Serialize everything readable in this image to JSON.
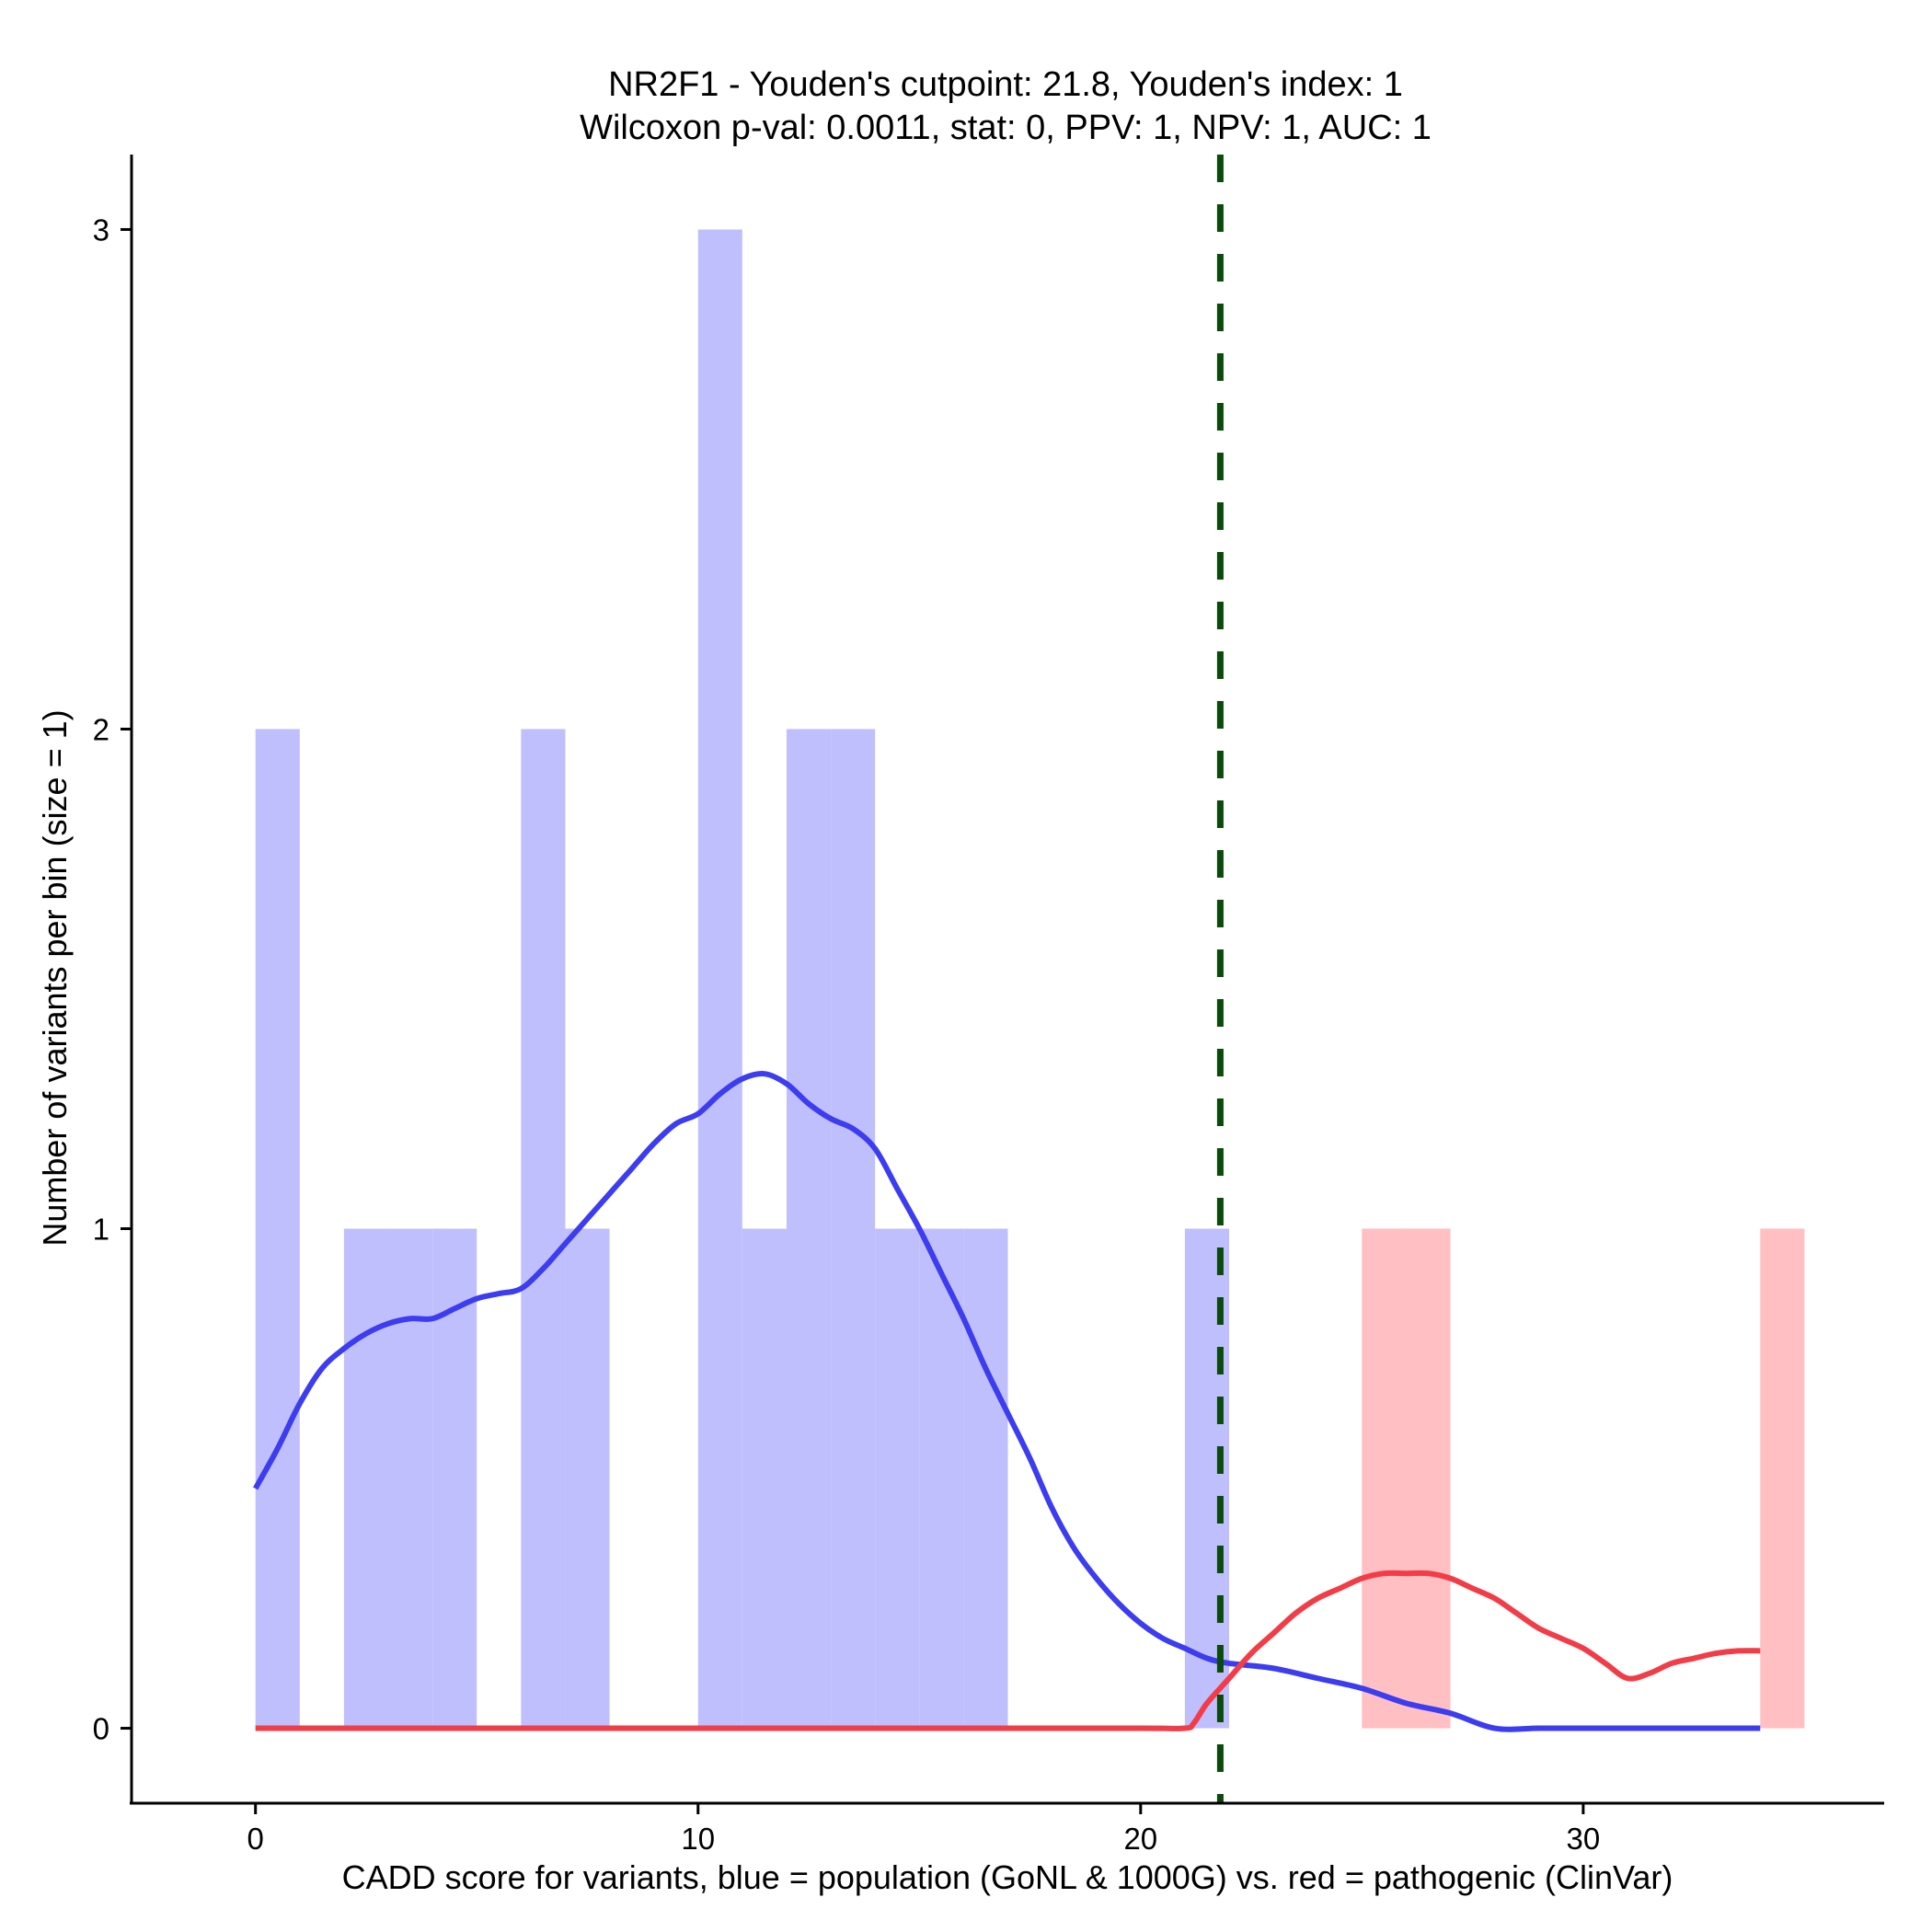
{
  "chart_data": {
    "type": "bar",
    "title": "NR2F1 - Youden's cutpoint: 21.8, Youden's index: 1",
    "subtitle": "Wilcoxon p-val: 0.0011, stat: 0, PPV: 1, NPV: 1, AUC: 1",
    "xlabel": "CADD score for variants, blue = population (GoNL & 1000G) vs. red = pathogenic (ClinVar)",
    "ylabel": "Number of variants per bin (size = 1)",
    "xlim": [
      -2.8,
      36.8
    ],
    "ylim": [
      -0.15,
      3.15
    ],
    "x_ticks": [
      0,
      10,
      20,
      30
    ],
    "y_ticks": [
      0,
      1,
      2,
      3
    ],
    "bin_size": 1,
    "colors": {
      "population_bar": "#bfbffd",
      "pathogenic_bar": "#ffbfc3",
      "population_line": "#3c3cf0",
      "pathogenic_line": "#f23c47",
      "cutpoint": "#0a4a0a"
    },
    "series": [
      {
        "name": "population",
        "bins": [
          {
            "start": 0,
            "count": 2
          },
          {
            "start": 2,
            "count": 1
          },
          {
            "start": 3,
            "count": 1
          },
          {
            "start": 4,
            "count": 1
          },
          {
            "start": 6,
            "count": 2
          },
          {
            "start": 7,
            "count": 1
          },
          {
            "start": 10,
            "count": 3
          },
          {
            "start": 11,
            "count": 1
          },
          {
            "start": 12,
            "count": 2
          },
          {
            "start": 13,
            "count": 2
          },
          {
            "start": 14,
            "count": 1
          },
          {
            "start": 15,
            "count": 1
          },
          {
            "start": 16,
            "count": 1
          },
          {
            "start": 21,
            "count": 1
          }
        ],
        "density": [
          [
            0,
            0.48
          ],
          [
            0.5,
            0.56
          ],
          [
            1,
            0.65
          ],
          [
            1.5,
            0.72
          ],
          [
            2,
            0.76
          ],
          [
            2.5,
            0.79
          ],
          [
            3,
            0.81
          ],
          [
            3.5,
            0.82
          ],
          [
            4,
            0.82
          ],
          [
            4.5,
            0.84
          ],
          [
            5,
            0.86
          ],
          [
            5.5,
            0.87
          ],
          [
            6,
            0.88
          ],
          [
            6.5,
            0.92
          ],
          [
            7,
            0.97
          ],
          [
            7.5,
            1.02
          ],
          [
            8,
            1.07
          ],
          [
            8.5,
            1.12
          ],
          [
            9,
            1.17
          ],
          [
            9.5,
            1.21
          ],
          [
            10,
            1.23
          ],
          [
            10.5,
            1.27
          ],
          [
            11,
            1.3
          ],
          [
            11.5,
            1.31
          ],
          [
            12,
            1.29
          ],
          [
            12.5,
            1.25
          ],
          [
            13,
            1.22
          ],
          [
            13.5,
            1.2
          ],
          [
            14,
            1.16
          ],
          [
            14.5,
            1.08
          ],
          [
            15,
            1.0
          ],
          [
            15.5,
            0.91
          ],
          [
            16,
            0.82
          ],
          [
            16.5,
            0.72
          ],
          [
            17,
            0.63
          ],
          [
            17.5,
            0.54
          ],
          [
            18,
            0.44
          ],
          [
            18.5,
            0.36
          ],
          [
            19,
            0.3
          ],
          [
            19.5,
            0.25
          ],
          [
            20,
            0.21
          ],
          [
            20.5,
            0.18
          ],
          [
            21,
            0.16
          ],
          [
            21.5,
            0.14
          ],
          [
            22,
            0.13
          ],
          [
            23,
            0.12
          ],
          [
            24,
            0.1
          ],
          [
            25,
            0.08
          ],
          [
            26,
            0.05
          ],
          [
            27,
            0.03
          ],
          [
            28,
            0.0
          ],
          [
            29,
            0.0
          ],
          [
            30,
            0.0
          ],
          [
            31,
            0.0
          ],
          [
            32,
            0.0
          ],
          [
            33,
            0.0
          ],
          [
            34,
            0.0
          ]
        ]
      },
      {
        "name": "pathogenic",
        "bins": [
          {
            "start": 25,
            "count": 1
          },
          {
            "start": 26,
            "count": 1
          },
          {
            "start": 34,
            "count": 1
          }
        ],
        "density": [
          [
            0,
            0.0
          ],
          [
            5,
            0.0
          ],
          [
            10,
            0.0
          ],
          [
            15,
            0.0
          ],
          [
            20,
            0.0
          ],
          [
            21,
            0.0
          ],
          [
            21.2,
            0.01
          ],
          [
            21.5,
            0.05
          ],
          [
            22,
            0.1
          ],
          [
            22.5,
            0.15
          ],
          [
            23,
            0.19
          ],
          [
            23.5,
            0.23
          ],
          [
            24,
            0.26
          ],
          [
            24.5,
            0.28
          ],
          [
            25,
            0.3
          ],
          [
            25.5,
            0.31
          ],
          [
            26,
            0.31
          ],
          [
            26.5,
            0.31
          ],
          [
            27,
            0.3
          ],
          [
            27.5,
            0.28
          ],
          [
            28,
            0.26
          ],
          [
            28.5,
            0.23
          ],
          [
            29,
            0.2
          ],
          [
            29.5,
            0.18
          ],
          [
            30,
            0.16
          ],
          [
            30.5,
            0.13
          ],
          [
            31,
            0.1
          ],
          [
            31.5,
            0.11
          ],
          [
            32,
            0.13
          ],
          [
            32.5,
            0.14
          ],
          [
            33,
            0.15
          ],
          [
            33.5,
            0.155
          ],
          [
            34,
            0.155
          ]
        ]
      }
    ],
    "cutpoint": 21.8,
    "grid": false,
    "legend": "none"
  }
}
